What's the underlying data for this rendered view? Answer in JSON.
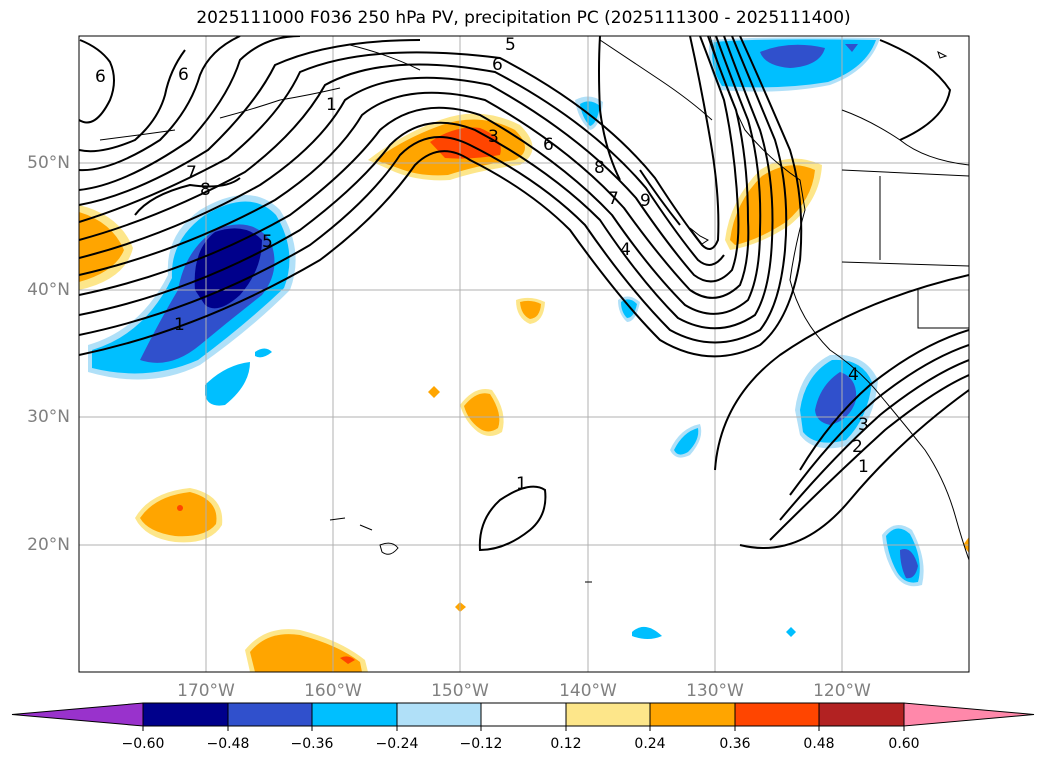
{
  "title": "2025111000 F036 250 hPa PV, precipitation PC (2025111300 - 2025111400)",
  "lat_labels": [
    "50°N",
    "40°N",
    "30°N",
    "20°N"
  ],
  "lon_labels": [
    "170°W",
    "160°W",
    "150°W",
    "140°W",
    "130°W",
    "120°W"
  ],
  "colorbar": {
    "ticks": [
      "−0.60",
      "−0.48",
      "−0.36",
      "−0.24",
      "−0.12",
      "0.12",
      "0.24",
      "0.36",
      "0.48",
      "0.60"
    ],
    "colors": [
      "#9932cc",
      "#00008b",
      "#3050cc",
      "#00bfff",
      "#b0e0f8",
      "#ffffff",
      "#fde68a",
      "#ffa500",
      "#ff4500",
      "#b22222",
      "#ff88aa"
    ]
  },
  "contour_labels": [
    "6",
    "6",
    "5",
    "6",
    "1",
    "3",
    "6",
    "8",
    "7",
    "8",
    "5",
    "1",
    "7",
    "9",
    "4",
    "4",
    "3",
    "2",
    "1",
    "1"
  ],
  "colors": {
    "contour": "#000000",
    "grid": "#b0b0b0",
    "coast": "#000000"
  }
}
